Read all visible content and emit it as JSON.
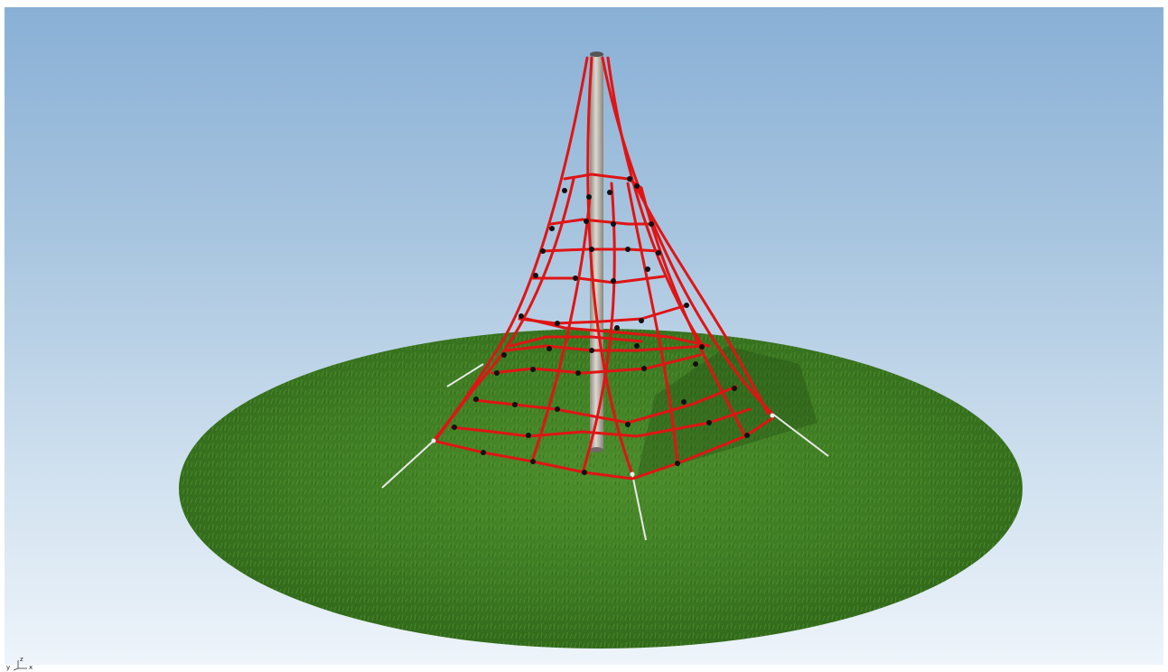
{
  "viewport": {
    "view": "perspective",
    "sky_top_color": "#89b0d6",
    "sky_bottom_color": "#eef4fa",
    "ground_color": "#3f7f24",
    "net_color": "#e01414",
    "pole_color": "#b7b2a8",
    "knot_color": "#111111"
  },
  "axis_gizmo": {
    "z_label": "z",
    "y_label": "y",
    "x_label": "x"
  }
}
